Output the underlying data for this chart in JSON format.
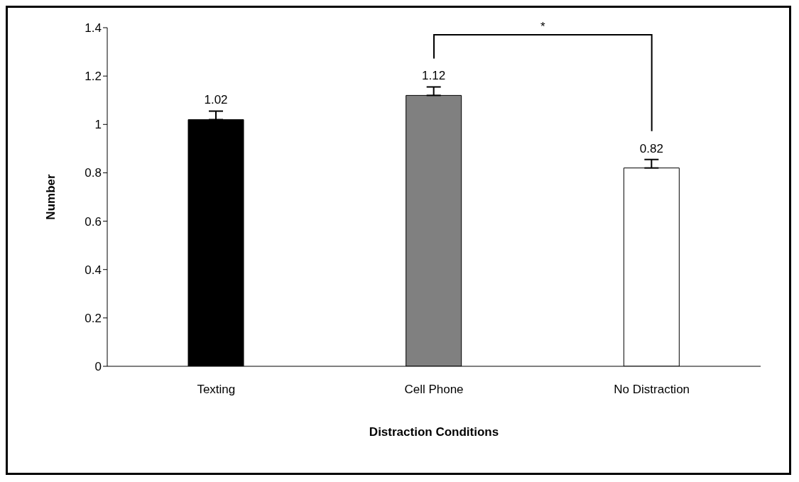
{
  "chart_data": {
    "type": "bar",
    "xlabel": "Distraction Conditions",
    "ylabel": "Number",
    "categories": [
      "Texting",
      "Cell Phone",
      "No Distraction"
    ],
    "values": [
      1.02,
      1.12,
      0.82
    ],
    "colors": [
      "#000000",
      "#808080",
      "#ffffff"
    ],
    "errors": [
      [
        1.02,
        1.055
      ],
      [
        1.12,
        1.155
      ],
      [
        0.82,
        0.855
      ]
    ],
    "data_labels": true,
    "ylim": [
      0,
      1.4
    ],
    "yticks": [
      0,
      0.2,
      0.4,
      0.6,
      0.8,
      1,
      1.2,
      1.4
    ],
    "grid": false,
    "legend": false,
    "annotations": [
      "*"
    ]
  }
}
